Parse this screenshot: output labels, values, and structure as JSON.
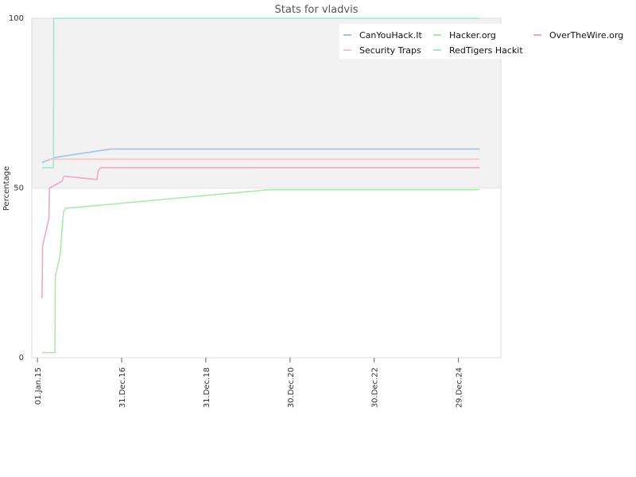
{
  "chart_data": {
    "type": "line",
    "title": "Stats for vladvis",
    "xlabel": "",
    "ylabel": "Percentage",
    "ylim": [
      0,
      100
    ],
    "yticks": [
      0,
      50,
      100
    ],
    "xlim": [
      "2014-11-13",
      "2026-01-01"
    ],
    "xticks": [
      {
        "label": "01.Jan.15",
        "date": "2015-01-01"
      },
      {
        "label": "31.Dec.16",
        "date": "2016-12-31"
      },
      {
        "label": "31.Dec.18",
        "date": "2018-12-31"
      },
      {
        "label": "30.Dec.20",
        "date": "2020-12-30"
      },
      {
        "label": "30.Dec.22",
        "date": "2022-12-30"
      },
      {
        "label": "29.Dec.24",
        "date": "2024-12-29"
      }
    ],
    "grid": false,
    "legend_position": "top-right",
    "series": [
      {
        "name": "CanYouHack.It",
        "color": "#9ec3ef",
        "points": [
          {
            "x": "2015-02-10",
            "y": 57.5
          },
          {
            "x": "2015-06-01",
            "y": 59.0
          },
          {
            "x": "2016-10-01",
            "y": 61.5
          },
          {
            "x": "2025-07-01",
            "y": 61.5
          }
        ]
      },
      {
        "name": "Hacker.org",
        "color": "#a8ecaa",
        "points": [
          {
            "x": "2015-02-10",
            "y": 1.5
          },
          {
            "x": "2015-06-01",
            "y": 1.5
          },
          {
            "x": "2015-06-05",
            "y": 24.0
          },
          {
            "x": "2015-07-15",
            "y": 30.0
          },
          {
            "x": "2015-08-15",
            "y": 43.0
          },
          {
            "x": "2015-09-01",
            "y": 44.0
          },
          {
            "x": "2020-07-01",
            "y": 49.5
          },
          {
            "x": "2025-07-01",
            "y": 49.5
          }
        ]
      },
      {
        "name": "OverTheWire.org",
        "color": "#f0a8c8",
        "points": [
          {
            "x": "2015-02-10",
            "y": 17.5
          },
          {
            "x": "2015-02-15",
            "y": 33.0
          },
          {
            "x": "2015-04-10",
            "y": 41.0
          },
          {
            "x": "2015-04-15",
            "y": 50.0
          },
          {
            "x": "2015-08-01",
            "y": 52.0
          },
          {
            "x": "2015-08-20",
            "y": 53.5
          },
          {
            "x": "2016-06-01",
            "y": 52.5
          },
          {
            "x": "2016-06-10",
            "y": 55.0
          },
          {
            "x": "2016-07-01",
            "y": 56.0
          },
          {
            "x": "2025-07-01",
            "y": 56.0
          }
        ]
      },
      {
        "name": "Security Traps",
        "color": "#f8c8c8",
        "points": [
          {
            "x": "2015-04-01",
            "y": 58.5
          },
          {
            "x": "2025-07-01",
            "y": 58.5
          }
        ]
      },
      {
        "name": "RedTigers Hackit",
        "color": "#a0e8d8",
        "points": [
          {
            "x": "2015-02-10",
            "y": 56.0
          },
          {
            "x": "2015-05-20",
            "y": 56.0
          },
          {
            "x": "2015-05-22",
            "y": 100.0
          },
          {
            "x": "2025-07-01",
            "y": 100.0
          }
        ]
      }
    ]
  }
}
